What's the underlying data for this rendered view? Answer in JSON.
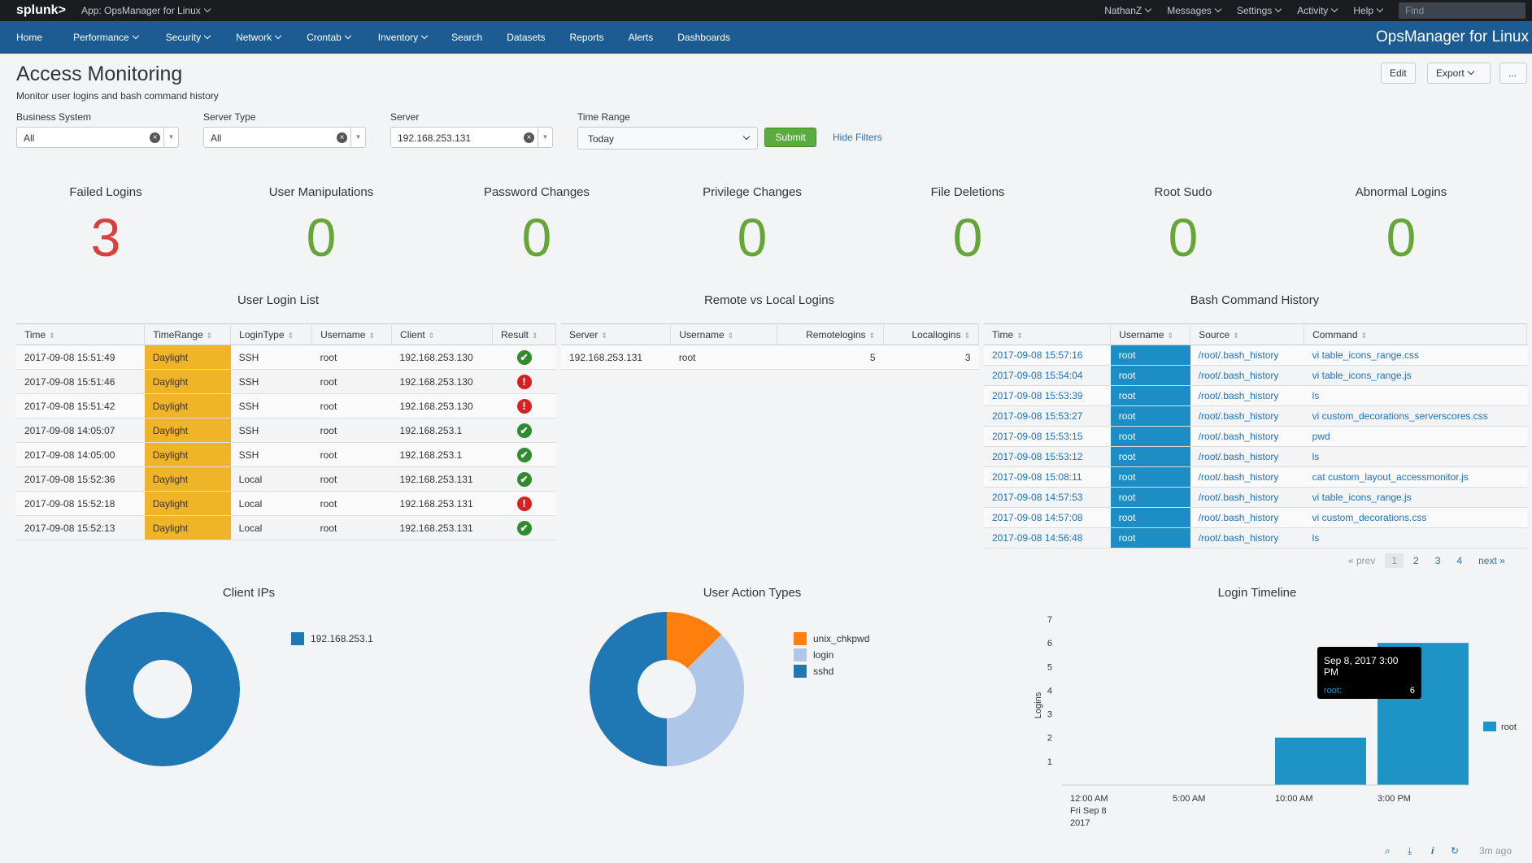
{
  "topbar": {
    "logo": "splunk>",
    "app": "App: OpsManager for Linux",
    "user": "NathanZ",
    "messages": "Messages",
    "settings": "Settings",
    "activity": "Activity",
    "help": "Help",
    "find_placeholder": "Find"
  },
  "nav": {
    "items": [
      "Home",
      "Performance",
      "Security",
      "Network",
      "Crontab",
      "Inventory",
      "Search",
      "Datasets",
      "Reports",
      "Alerts",
      "Dashboards"
    ],
    "app_title": "OpsManager for Linux"
  },
  "header": {
    "title": "Access Monitoring",
    "description": "Monitor user logins and bash command history",
    "edit": "Edit",
    "export": "Export",
    "more": "..."
  },
  "filters": {
    "business_system": {
      "label": "Business System",
      "value": "All"
    },
    "server_type": {
      "label": "Server Type",
      "value": "All"
    },
    "server": {
      "label": "Server",
      "value": "192.168.253.131"
    },
    "time_range": {
      "label": "Time Range",
      "value": "Today"
    },
    "submit": "Submit",
    "hide_filters": "Hide Filters"
  },
  "singles": [
    {
      "title": "Failed Logins",
      "value": "3",
      "color": "#d93f3c"
    },
    {
      "title": "User Manipulations",
      "value": "0",
      "color": "#65a637"
    },
    {
      "title": "Password Changes",
      "value": "0",
      "color": "#65a637"
    },
    {
      "title": "Privilege Changes",
      "value": "0",
      "color": "#65a637"
    },
    {
      "title": "File Deletions",
      "value": "0",
      "color": "#65a637"
    },
    {
      "title": "Root Sudo",
      "value": "0",
      "color": "#65a637"
    },
    {
      "title": "Abnormal Logins",
      "value": "0",
      "color": "#65a637"
    }
  ],
  "login_list": {
    "title": "User Login List",
    "columns": [
      "Time",
      "TimeRange",
      "LoginType",
      "Username",
      "Client",
      "Result"
    ],
    "rows": [
      {
        "time": "2017-09-08 15:51:49",
        "range": "Daylight",
        "type": "SSH",
        "user": "root",
        "client": "192.168.253.130",
        "result": "ok"
      },
      {
        "time": "2017-09-08 15:51:46",
        "range": "Daylight",
        "type": "SSH",
        "user": "root",
        "client": "192.168.253.130",
        "result": "bad"
      },
      {
        "time": "2017-09-08 15:51:42",
        "range": "Daylight",
        "type": "SSH",
        "user": "root",
        "client": "192.168.253.130",
        "result": "bad"
      },
      {
        "time": "2017-09-08 14:05:07",
        "range": "Daylight",
        "type": "SSH",
        "user": "root",
        "client": "192.168.253.1",
        "result": "ok"
      },
      {
        "time": "2017-09-08 14:05:00",
        "range": "Daylight",
        "type": "SSH",
        "user": "root",
        "client": "192.168.253.1",
        "result": "ok"
      },
      {
        "time": "2017-09-08 15:52:36",
        "range": "Daylight",
        "type": "Local",
        "user": "root",
        "client": "192.168.253.131",
        "result": "ok"
      },
      {
        "time": "2017-09-08 15:52:18",
        "range": "Daylight",
        "type": "Local",
        "user": "root",
        "client": "192.168.253.131",
        "result": "bad"
      },
      {
        "time": "2017-09-08 15:52:13",
        "range": "Daylight",
        "type": "Local",
        "user": "root",
        "client": "192.168.253.131",
        "result": "ok"
      }
    ]
  },
  "remote_local": {
    "title": "Remote vs Local Logins",
    "columns": [
      "Server",
      "Username",
      "Remotelogins",
      "Locallogins"
    ],
    "rows": [
      {
        "server": "192.168.253.131",
        "user": "root",
        "remote": "5",
        "local": "3"
      }
    ]
  },
  "bash_history": {
    "title": "Bash Command History",
    "columns": [
      "Time",
      "Username",
      "Source",
      "Command"
    ],
    "rows": [
      {
        "time": "2017-09-08 15:57:16",
        "user": "root",
        "source": "/root/.bash_history",
        "cmd": "vi table_icons_range.css"
      },
      {
        "time": "2017-09-08 15:54:04",
        "user": "root",
        "source": "/root/.bash_history",
        "cmd": "vi table_icons_range.js"
      },
      {
        "time": "2017-09-08 15:53:39",
        "user": "root",
        "source": "/root/.bash_history",
        "cmd": "ls"
      },
      {
        "time": "2017-09-08 15:53:27",
        "user": "root",
        "source": "/root/.bash_history",
        "cmd": "vi custom_decorations_serverscores.css"
      },
      {
        "time": "2017-09-08 15:53:15",
        "user": "root",
        "source": "/root/.bash_history",
        "cmd": "pwd"
      },
      {
        "time": "2017-09-08 15:53:12",
        "user": "root",
        "source": "/root/.bash_history",
        "cmd": "ls"
      },
      {
        "time": "2017-09-08 15:08:11",
        "user": "root",
        "source": "/root/.bash_history",
        "cmd": "cat custom_layout_accessmonitor.js"
      },
      {
        "time": "2017-09-08 14:57:53",
        "user": "root",
        "source": "/root/.bash_history",
        "cmd": "vi table_icons_range.js"
      },
      {
        "time": "2017-09-08 14:57:08",
        "user": "root",
        "source": "/root/.bash_history",
        "cmd": "vi custom_decorations.css"
      },
      {
        "time": "2017-09-08 14:56:48",
        "user": "root",
        "source": "/root/.bash_history",
        "cmd": "ls"
      }
    ],
    "pager": {
      "prev": "« prev",
      "pages": [
        "1",
        "2",
        "3",
        "4"
      ],
      "next": "next »"
    }
  },
  "client_ips": {
    "title": "Client IPs",
    "legend": [
      {
        "label": "192.168.253.1",
        "color": "#1f77b4"
      }
    ]
  },
  "user_actions": {
    "title": "User Action Types",
    "legend": [
      {
        "label": "unix_chkpwd",
        "color": "#ff7f0e"
      },
      {
        "label": "login",
        "color": "#aec7e8"
      },
      {
        "label": "sshd",
        "color": "#1f77b4"
      }
    ]
  },
  "login_timeline": {
    "title": "Login Timeline",
    "tooltip": {
      "time": "Sep 8, 2017 3:00 PM",
      "key": "root:",
      "value": "6"
    },
    "footer": {
      "ago": "3m ago"
    }
  },
  "chart_data": [
    {
      "type": "pie",
      "title": "Client IPs",
      "categories": [
        "192.168.253.1"
      ],
      "values": [
        1
      ],
      "donut": true
    },
    {
      "type": "pie",
      "title": "User Action Types",
      "categories": [
        "unix_chkpwd",
        "login",
        "sshd"
      ],
      "values": [
        1,
        3,
        4
      ],
      "donut": true
    },
    {
      "type": "bar",
      "title": "Login Timeline",
      "ylabel": "Logins",
      "x_ticks": [
        "12:00 AM\nFri Sep 8\n2017",
        "5:00 AM",
        "10:00 AM",
        "3:00 PM"
      ],
      "y_ticks": [
        1,
        2,
        3,
        4,
        5,
        6,
        7
      ],
      "ylim": [
        0,
        7
      ],
      "series": [
        {
          "name": "root",
          "color": "#1e93c6",
          "points": [
            {
              "x": "10:00 AM",
              "y": 2
            },
            {
              "x": "3:00 PM",
              "y": 6
            }
          ]
        }
      ],
      "legend": "right"
    }
  ]
}
